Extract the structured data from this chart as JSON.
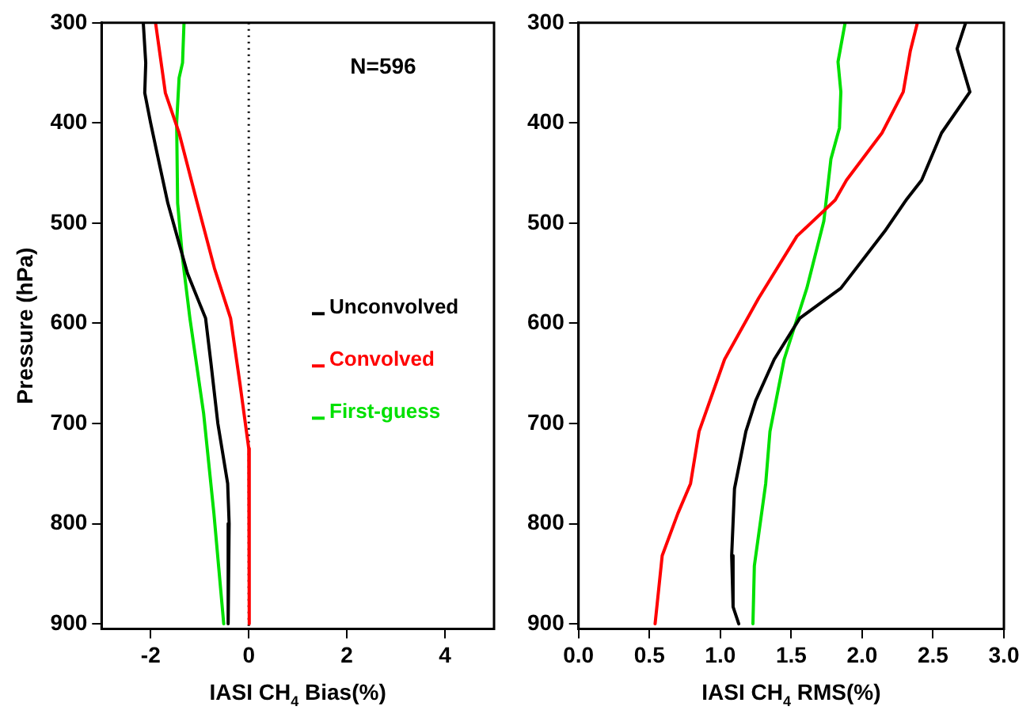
{
  "chart_data": [
    {
      "type": "line",
      "xlabel": "IASI CH$_{4}$ Bias(%)",
      "ylabel": "Pressure (hPa)",
      "xlim": [
        -3,
        5
      ],
      "xticks": [
        -2,
        0,
        2,
        4
      ],
      "ylim": [
        905,
        300
      ],
      "yticks": [
        300,
        400,
        500,
        600,
        700,
        800,
        900
      ],
      "grid": false,
      "legend": "right",
      "marker": "none",
      "line_style": "solid",
      "annotations": [
        "N=596"
      ],
      "ref_lines": [
        {
          "axis": "x",
          "value": 0,
          "color": "#000000",
          "line_style": "dotted"
        }
      ],
      "series": [
        {
          "name": "Unconvolved",
          "color": "#000000",
          "x": [
            -2.15,
            -2.1,
            -2.12,
            -2.0,
            -1.87,
            -1.65,
            -1.45,
            -1.25,
            -0.88,
            -0.77,
            -0.63,
            -0.43,
            -0.4,
            -0.42
          ],
          "values": [
            300,
            340,
            370,
            400,
            430,
            480,
            515,
            550,
            595,
            640,
            700,
            760,
            800,
            900
          ]
        },
        {
          "name": "Convolved",
          "color": "#ff0000",
          "x": [
            -1.9,
            -1.7,
            -1.42,
            -1.05,
            -0.7,
            -0.37,
            -0.18,
            0,
            0.02,
            0
          ],
          "values": [
            300,
            370,
            410,
            480,
            545,
            595,
            660,
            725,
            765,
            900
          ]
        },
        {
          "name": "First-guess",
          "color": "#00e000",
          "x": [
            -1.32,
            -1.35,
            -1.42,
            -1.47,
            -1.45,
            -1.35,
            -1.2,
            -0.92,
            -0.71,
            -0.51
          ],
          "values": [
            300,
            340,
            355,
            400,
            480,
            535,
            595,
            690,
            790,
            900
          ]
        }
      ]
    },
    {
      "type": "line",
      "xlabel": "IASI CH$_{4}$ RMS(%)",
      "xlim": [
        0,
        3
      ],
      "xticks": [
        {
          "value": 0,
          "label": "0.0"
        },
        {
          "value": 0.5,
          "label": "0.5"
        },
        {
          "value": 1,
          "label": "1.0"
        },
        {
          "value": 1.5,
          "label": "1.5"
        },
        {
          "value": 2,
          "label": "2.0"
        },
        {
          "value": 2.5,
          "label": "2.5"
        },
        {
          "value": 3,
          "label": "3.0"
        }
      ],
      "ylim": [
        905,
        300
      ],
      "yticks": [
        300,
        400,
        500,
        600,
        700,
        800,
        900
      ],
      "grid": false,
      "marker": "none",
      "line_style": "solid",
      "series": [
        {
          "color": "#000000",
          "x": [
            2.73,
            2.67,
            2.76,
            2.56,
            2.42,
            2.31,
            2.16,
            1.85,
            1.56,
            1.38,
            1.25,
            1.18,
            1.1,
            1.08,
            1.09,
            1.13
          ],
          "values": [
            300,
            326,
            369,
            410,
            457,
            477,
            508,
            565,
            595,
            636,
            677,
            708,
            765,
            832,
            883,
            900
          ]
        },
        {
          "color": "#ff0000",
          "x": [
            2.39,
            2.34,
            2.29,
            2.14,
            1.89,
            1.81,
            1.54,
            1.27,
            1.03,
            0.85,
            0.79,
            0.7,
            0.59,
            0.54
          ],
          "values": [
            300,
            328,
            369,
            410,
            457,
            477,
            513,
            575,
            636,
            708,
            760,
            790,
            832,
            900
          ]
        },
        {
          "color": "#00e000",
          "x": [
            1.88,
            1.83,
            1.85,
            1.84,
            1.78,
            1.73,
            1.61,
            1.45,
            1.35,
            1.32,
            1.24,
            1.23
          ],
          "values": [
            300,
            339,
            369,
            405,
            436,
            498,
            565,
            636,
            708,
            760,
            842,
            900
          ]
        }
      ]
    }
  ]
}
